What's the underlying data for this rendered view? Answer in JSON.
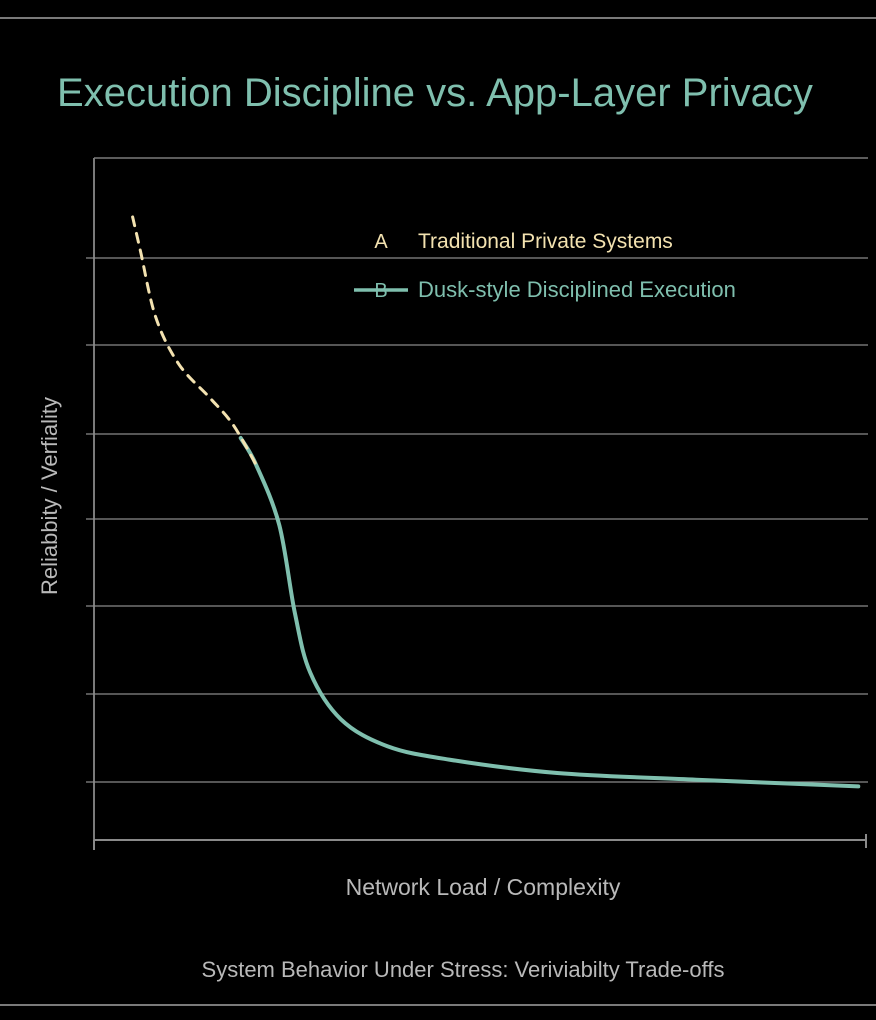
{
  "chart_data": {
    "type": "line",
    "title": "Execution Discipline vs. App-Layer Privacy",
    "subtitle": "System Behavior Under Stress: Veriviabilty Trade-offs",
    "xlabel": "Network Load / Complexity",
    "ylabel": "Reliabbity / Verfiality",
    "xlim": [
      0,
      100
    ],
    "ylim": [
      0,
      100
    ],
    "grid": true,
    "legend_position": "top-right",
    "series": [
      {
        "name": "Traditional Private Systems",
        "marker_label": "A",
        "style": "dashed",
        "color": "#f3e2b0",
        "points": [
          [
            5,
            93
          ],
          [
            6,
            88
          ],
          [
            8,
            78
          ],
          [
            11,
            71
          ],
          [
            15,
            66
          ],
          [
            18,
            62
          ],
          [
            21,
            56
          ]
        ]
      },
      {
        "name": "Dusk-style Disciplined Execution",
        "marker_label": "B",
        "style": "solid",
        "color": "#7fbfae",
        "points": [
          [
            19,
            60
          ],
          [
            21,
            56
          ],
          [
            24,
            47
          ],
          [
            26,
            34
          ],
          [
            28,
            25
          ],
          [
            32,
            18
          ],
          [
            38,
            14
          ],
          [
            46,
            12
          ],
          [
            60,
            10
          ],
          [
            78,
            9
          ],
          [
            99,
            8
          ]
        ]
      }
    ]
  },
  "colors": {
    "background": "#000000",
    "title": "#7fbfae",
    "axis_text": "#b9b9b9",
    "grid": "#8a8a8a",
    "frame": "#7a7a7a",
    "legend_text_b": "#7fbfae",
    "legend_text_a": "#f3e2b0"
  }
}
